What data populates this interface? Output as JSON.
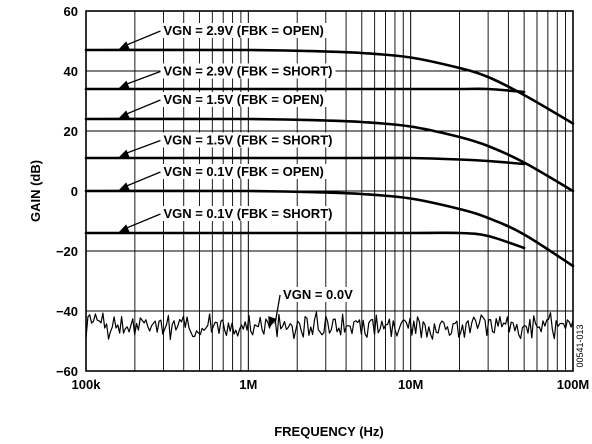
{
  "chart_data": {
    "type": "line",
    "xlabel": "FREQUENCY (Hz)",
    "ylabel": "GAIN (dB)",
    "x_scale": "log",
    "xlim": [
      100000,
      100000000
    ],
    "ylim": [
      -60,
      60
    ],
    "x_ticks": [
      {
        "value": 100000,
        "label": "100k"
      },
      {
        "value": 1000000,
        "label": "1M"
      },
      {
        "value": 10000000,
        "label": "10M"
      },
      {
        "value": 100000000,
        "label": "100M"
      }
    ],
    "y_ticks": [
      {
        "value": 60,
        "label": "60"
      },
      {
        "value": 40,
        "label": "40"
      },
      {
        "value": 20,
        "label": "20"
      },
      {
        "value": 0,
        "label": "0"
      },
      {
        "value": -20,
        "label": "−20"
      },
      {
        "value": -40,
        "label": "−40"
      },
      {
        "value": -60,
        "label": "−60"
      }
    ],
    "grid": true,
    "figure_id": "00541-013",
    "series": [
      {
        "name": "VGN = 2.9V (FBK = OPEN)",
        "label_at": [
          300000,
          52
        ],
        "x": [
          100000,
          1000000,
          3000000,
          5000000,
          10000000,
          20000000,
          30000000,
          50000000,
          100000000
        ],
        "y": [
          47,
          47,
          46.5,
          46,
          44.5,
          41,
          38,
          32,
          22.5
        ]
      },
      {
        "name": "VGN = 2.9V (FBK = SHORT)",
        "label_at": [
          300000,
          38.5
        ],
        "x": [
          100000,
          1000000,
          10000000,
          20000000,
          30000000,
          50000000
        ],
        "y": [
          34,
          34,
          34,
          34,
          34,
          33
        ]
      },
      {
        "name": "VGN = 1.5V (FBK = OPEN)",
        "label_at": [
          300000,
          29
        ],
        "x": [
          100000,
          1000000,
          3000000,
          5000000,
          10000000,
          20000000,
          30000000,
          50000000,
          100000000
        ],
        "y": [
          24,
          24,
          23.5,
          23,
          21.5,
          18,
          15,
          9.5,
          0
        ]
      },
      {
        "name": "VGN = 1.5V (FBK = SHORT)",
        "label_at": [
          300000,
          15.5
        ],
        "x": [
          100000,
          1000000,
          5000000,
          10000000,
          20000000,
          30000000,
          50000000
        ],
        "y": [
          11,
          11,
          11,
          11,
          10.5,
          10,
          9
        ]
      },
      {
        "name": "VGN = 0.1V (FBK = OPEN)",
        "label_at": [
          300000,
          5
        ],
        "x": [
          100000,
          1000000,
          3000000,
          5000000,
          10000000,
          20000000,
          30000000,
          50000000,
          100000000
        ],
        "y": [
          0,
          0,
          -0.5,
          -1,
          -2.5,
          -6,
          -9,
          -14.5,
          -25
        ]
      },
      {
        "name": "VGN = 0.1V (FBK = SHORT)",
        "label_at": [
          300000,
          -9
        ],
        "x": [
          100000,
          1000000,
          10000000,
          20000000,
          30000000,
          50000000
        ],
        "y": [
          -14,
          -14,
          -14,
          -14,
          -15,
          -19
        ]
      },
      {
        "name": "VGN = 0.0V",
        "label_at": [
          1100000,
          -36
        ],
        "x_range": [
          100000,
          100000000
        ],
        "mean": -45,
        "amplitude": 4
      }
    ]
  }
}
